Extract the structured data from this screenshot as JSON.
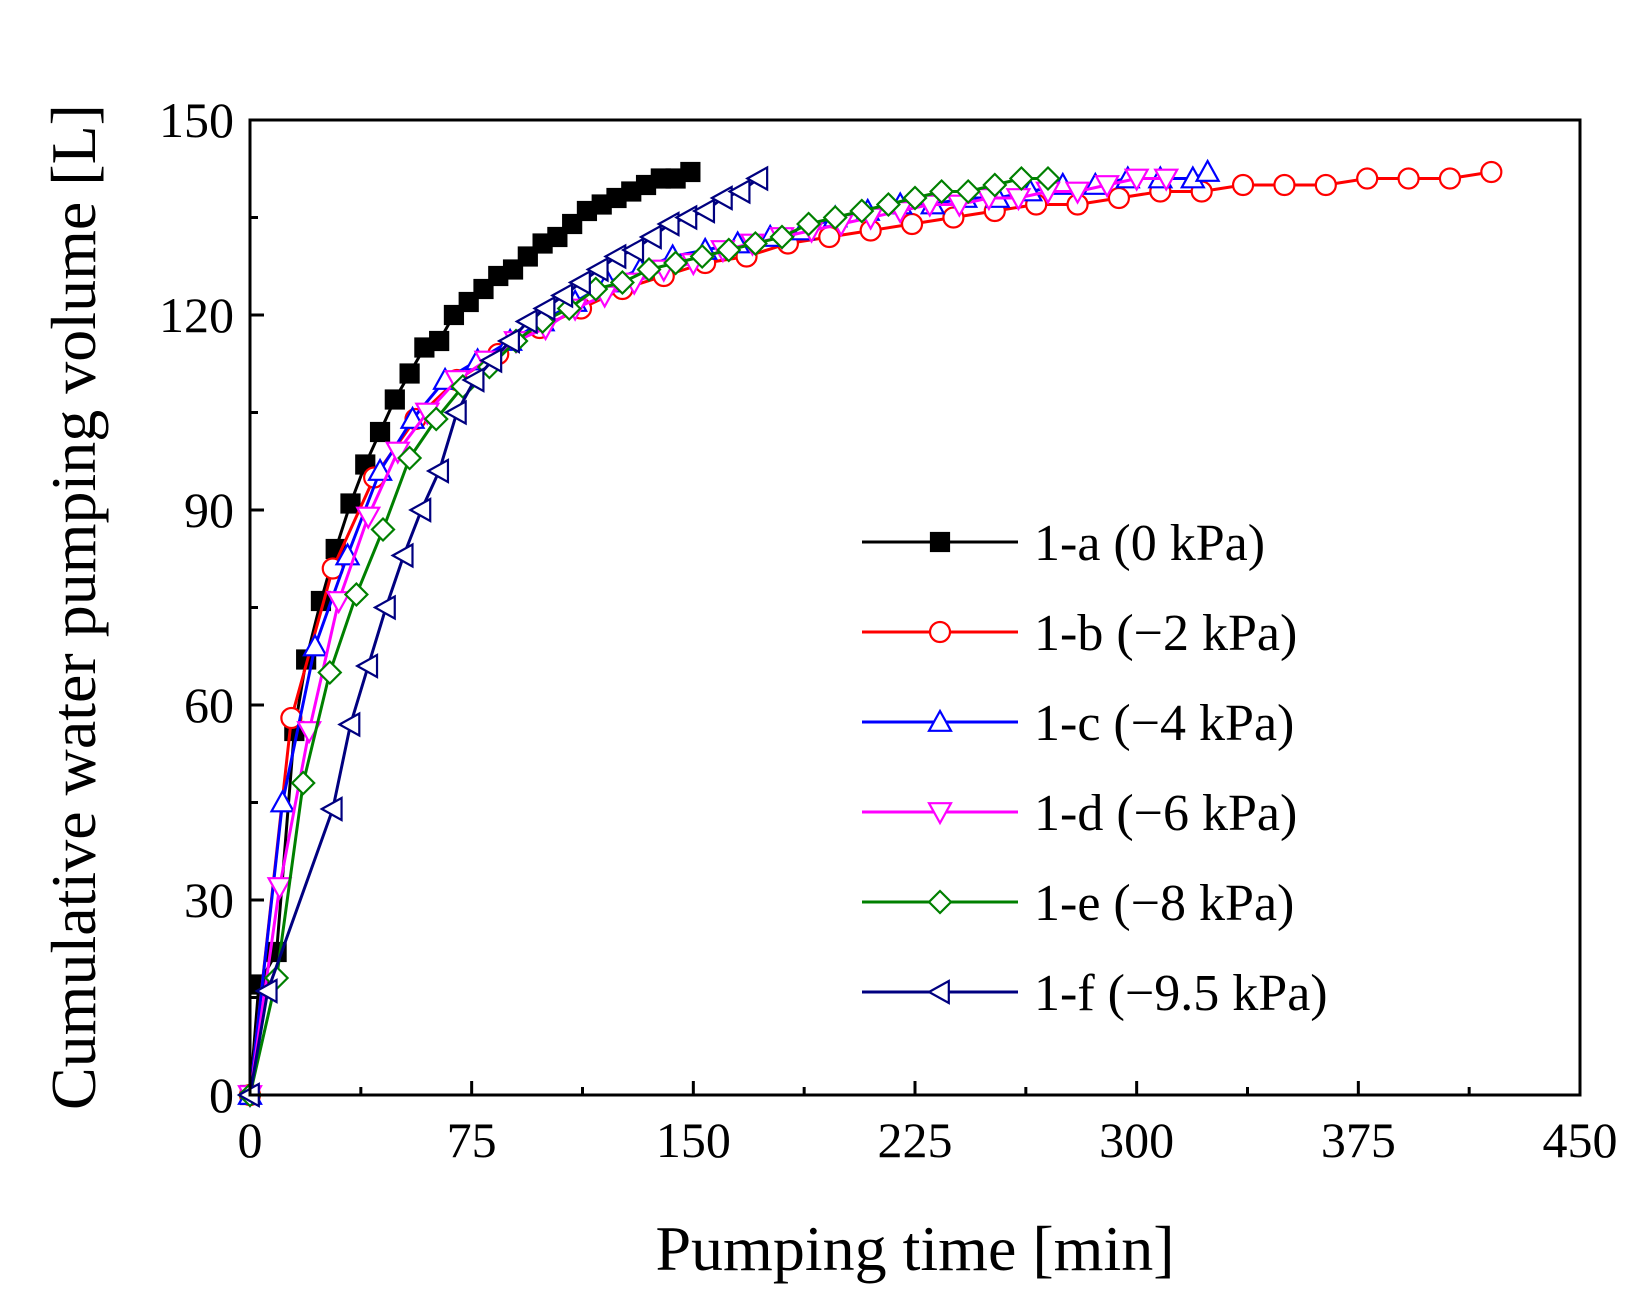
{
  "chart_data": {
    "type": "line",
    "title": "",
    "xlabel": "Pumping time [min]",
    "ylabel": "Cumulative water pumping volume [L]",
    "xlim": [
      0,
      450
    ],
    "ylim": [
      0,
      150
    ],
    "xticks": [
      0,
      75,
      150,
      225,
      300,
      375,
      450
    ],
    "yticks": [
      0,
      30,
      60,
      90,
      120,
      150
    ],
    "grid": false,
    "legend_position": "lower-right",
    "series": [
      {
        "name": "1-a (0 kPa)",
        "color": "#000000",
        "marker": "square-filled",
        "x": [
          0,
          3,
          9,
          15,
          19,
          24,
          29,
          34,
          39,
          44,
          49,
          54,
          59,
          64,
          69,
          74,
          79,
          84,
          89,
          94,
          99,
          104,
          109,
          114,
          119,
          124,
          129,
          134,
          139,
          144,
          149
        ],
        "y": [
          0,
          17,
          22,
          56,
          67,
          76,
          84,
          91,
          97,
          102,
          107,
          111,
          115,
          116,
          120,
          122,
          124,
          126,
          127,
          129,
          131,
          132,
          134,
          136,
          137,
          138,
          139,
          140,
          141,
          141,
          142
        ]
      },
      {
        "name": "1-b (−2 kPa)",
        "color": "#ff0000",
        "marker": "circle-open",
        "x": [
          0,
          14,
          28,
          42,
          56,
          70,
          84,
          98,
          112,
          126,
          140,
          154,
          168,
          182,
          196,
          210,
          224,
          238,
          252,
          266,
          280,
          294,
          308,
          322,
          336,
          350,
          364,
          378,
          392,
          406,
          420
        ],
        "y": [
          0,
          58,
          81,
          95,
          104,
          110,
          114,
          118,
          121,
          124,
          126,
          128,
          129,
          131,
          132,
          133,
          134,
          135,
          136,
          137,
          137,
          138,
          139,
          139,
          140,
          140,
          140,
          141,
          141,
          141,
          142
        ]
      },
      {
        "name": "1-c (−4 kPa)",
        "color": "#0000ff",
        "marker": "triangle-up-open",
        "x": [
          0,
          11,
          22,
          33,
          44,
          55,
          66,
          77,
          88,
          99,
          110,
          121,
          132,
          143,
          154,
          165,
          176,
          187,
          198,
          209,
          220,
          231,
          242,
          253,
          264,
          275,
          286,
          297,
          308,
          319,
          324
        ],
        "y": [
          0,
          45,
          69,
          83,
          96,
          104,
          110,
          113,
          116,
          119,
          122,
          125,
          127,
          129,
          130,
          131,
          132,
          133,
          135,
          136,
          137,
          137,
          138,
          138,
          139,
          140,
          140,
          141,
          141,
          141,
          142
        ]
      },
      {
        "name": "1-d (−6 kPa)",
        "color": "#ff00ff",
        "marker": "triangle-down-open",
        "x": [
          0,
          10,
          20,
          30,
          40,
          50,
          60,
          70,
          80,
          90,
          100,
          110,
          120,
          130,
          140,
          150,
          160,
          170,
          180,
          190,
          200,
          210,
          220,
          230,
          240,
          250,
          260,
          270,
          280,
          290,
          300,
          310
        ],
        "y": [
          0,
          32,
          56,
          76,
          89,
          99,
          105,
          110,
          113,
          116,
          118,
          121,
          123,
          125,
          127,
          128,
          130,
          131,
          132,
          133,
          134,
          135,
          136,
          137,
          137,
          138,
          138,
          139,
          139,
          140,
          141,
          141
        ]
      },
      {
        "name": "1-e (−8 kPa)",
        "color": "#008000",
        "marker": "diamond-open",
        "x": [
          0,
          9,
          18,
          27,
          36,
          45,
          54,
          63,
          72,
          81,
          90,
          99,
          108,
          117,
          126,
          135,
          144,
          153,
          162,
          171,
          180,
          189,
          198,
          207,
          216,
          225,
          234,
          243,
          252,
          261,
          270
        ],
        "y": [
          0,
          18,
          48,
          65,
          77,
          87,
          98,
          104,
          109,
          112,
          116,
          119,
          121,
          124,
          125,
          127,
          128,
          129,
          130,
          131,
          132,
          134,
          135,
          136,
          137,
          138,
          139,
          139,
          140,
          141,
          141
        ]
      },
      {
        "name": "1-f (−9.5 kPa)",
        "color": "#000080",
        "marker": "triangle-left-open",
        "x": [
          0,
          6,
          28,
          34,
          40,
          46,
          52,
          58,
          64,
          70,
          76,
          82,
          88,
          94,
          100,
          106,
          112,
          118,
          124,
          130,
          136,
          142,
          148,
          154,
          160,
          166,
          172
        ],
        "y": [
          0,
          16,
          44,
          57,
          66,
          75,
          83,
          90,
          96,
          105,
          110,
          113,
          116,
          119,
          121,
          123,
          125,
          127,
          129,
          130,
          132,
          134,
          135,
          136,
          138,
          139,
          141
        ]
      }
    ]
  }
}
